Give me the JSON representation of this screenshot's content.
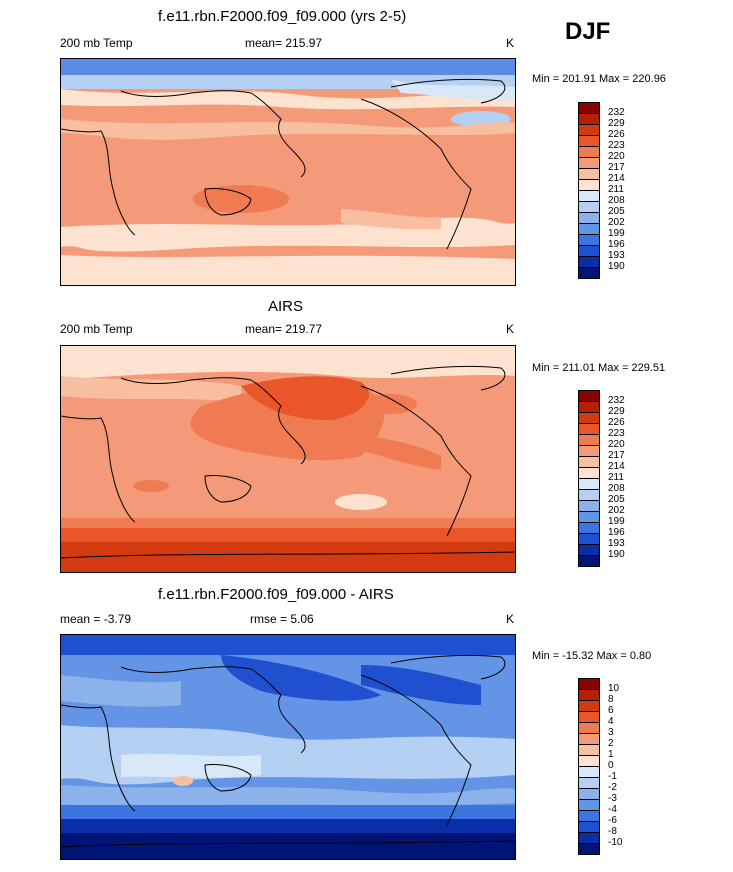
{
  "season": "DJF",
  "panels": [
    {
      "title": "f.e11.rbn.F2000.f09_f09.000 (yrs 2-5)",
      "left_label": "200 mb Temp",
      "center_label": "mean= 215.97",
      "unit": "K",
      "minmax": "Min = 201.91 Max = 220.96",
      "levels": [
        "232",
        "229",
        "226",
        "223",
        "220",
        "217",
        "214",
        "211",
        "208",
        "205",
        "202",
        "199",
        "196",
        "193",
        "190"
      ],
      "colors": [
        "#8b0000",
        "#b22200",
        "#d43a10",
        "#e8562a",
        "#f07a52",
        "#f49a78",
        "#f8bea0",
        "#fde2d0",
        "#d8e8f8",
        "#b4d0f2",
        "#8cb2ec",
        "#6494e6",
        "#3c74e0",
        "#1e50d0",
        "#0a2ea8",
        "#001478"
      ]
    },
    {
      "title": "AIRS",
      "left_label": "200 mb Temp",
      "center_label": "mean= 219.77",
      "unit": "K",
      "minmax": "Min = 211.01 Max = 229.51",
      "levels": [
        "232",
        "229",
        "226",
        "223",
        "220",
        "217",
        "214",
        "211",
        "208",
        "205",
        "202",
        "199",
        "196",
        "193",
        "190"
      ],
      "colors": [
        "#8b0000",
        "#b22200",
        "#d43a10",
        "#e8562a",
        "#f07a52",
        "#f49a78",
        "#f8bea0",
        "#fde2d0",
        "#d8e8f8",
        "#b4d0f2",
        "#8cb2ec",
        "#6494e6",
        "#3c74e0",
        "#1e50d0",
        "#0a2ea8",
        "#001478"
      ]
    },
    {
      "title": "f.e11.rbn.F2000.f09_f09.000 - AIRS",
      "left_label": "mean =  -3.79",
      "center_label": "rmse =   5.06",
      "unit": "K",
      "minmax": "Min = -15.32 Max =   0.80",
      "levels": [
        "10",
        "8",
        "6",
        "4",
        "3",
        "2",
        "1",
        "0",
        "-1",
        "-2",
        "-3",
        "-4",
        "-6",
        "-8",
        "-10"
      ],
      "colors": [
        "#8b0000",
        "#b22200",
        "#d43a10",
        "#e8562a",
        "#f07a52",
        "#f49a78",
        "#f8bea0",
        "#fde2d0",
        "#d8e8f8",
        "#b4d0f2",
        "#8cb2ec",
        "#6494e6",
        "#3c74e0",
        "#1e50d0",
        "#0a2ea8",
        "#001478"
      ]
    }
  ]
}
